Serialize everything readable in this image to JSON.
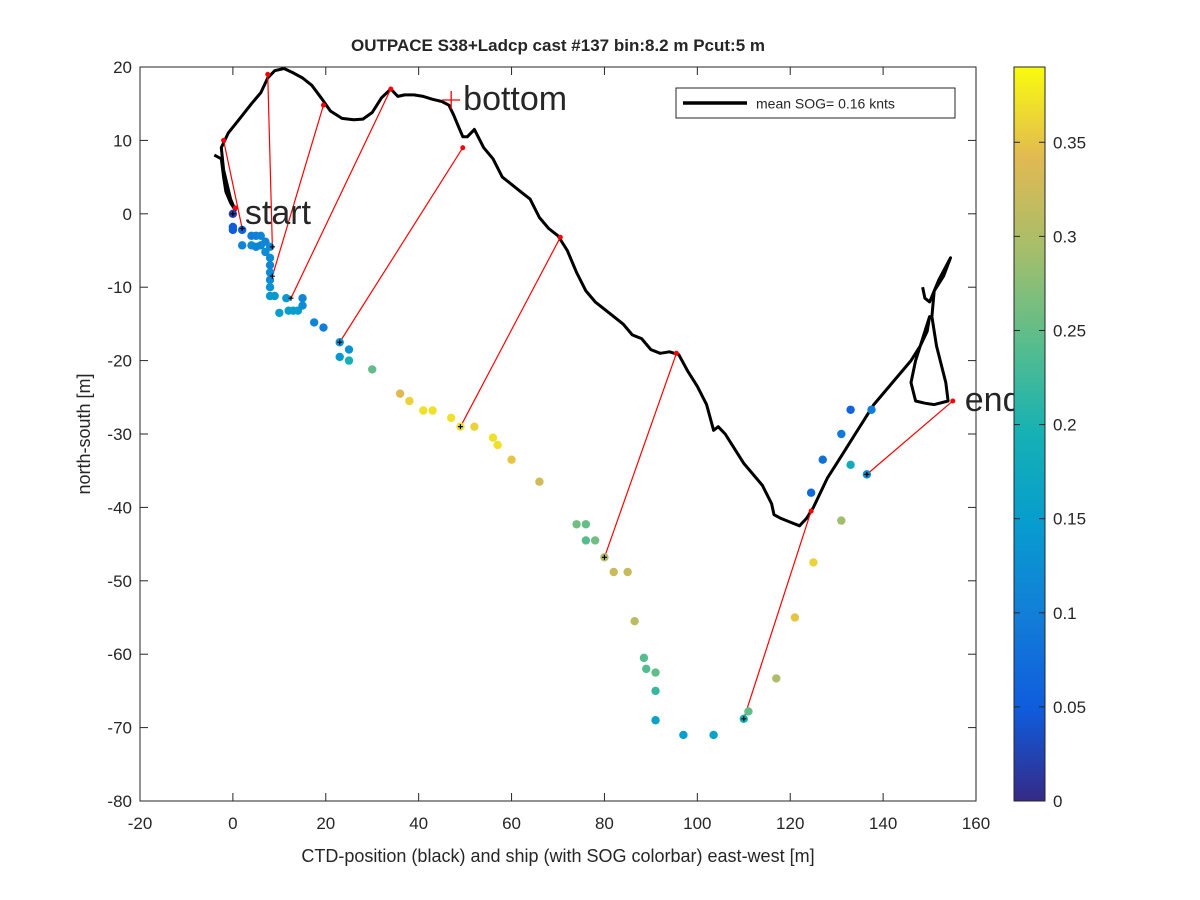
{
  "chart_data": {
    "type": "scatter",
    "title": "OUTPACE S38+Ladcp cast #137 bin:8.2 m  Pcut:5 m",
    "xlabel": "CTD-position (black) and ship (with SOG colorbar) east-west [m]",
    "ylabel": "north-south [m]",
    "xlim": [
      -20,
      160
    ],
    "ylim": [
      -80,
      20
    ],
    "xticks": [
      "-20",
      "0",
      "20",
      "40",
      "60",
      "80",
      "100",
      "120",
      "140",
      "160"
    ],
    "yticks": [
      "-80",
      "-70",
      "-60",
      "-50",
      "-40",
      "-30",
      "-20",
      "-10",
      "0",
      "10",
      "20"
    ],
    "grid": false,
    "legend": {
      "position": "top-right",
      "entries": [
        "mean SOG=  0.16 knts"
      ]
    },
    "annotations": [
      {
        "text": "start",
        "x": 0,
        "y": 0
      },
      {
        "text": "bottom",
        "x": 47,
        "y": 15.5
      },
      {
        "text": "end",
        "x": 155,
        "y": -25.5
      }
    ],
    "colorbar": {
      "colormap": "parula",
      "range": [
        0,
        0.39
      ],
      "ticks": [
        "0",
        "0.05",
        "0.1",
        "0.15",
        "0.2",
        "0.25",
        "0.3",
        "0.35"
      ]
    },
    "ctd_track": [
      [
        -4,
        8
      ],
      [
        -2.5,
        7.5
      ],
      [
        -2,
        5
      ],
      [
        -1.5,
        3
      ],
      [
        -0.5,
        1.5
      ],
      [
        0.5,
        0.5
      ],
      [
        -0.5,
        2
      ],
      [
        -2,
        6
      ],
      [
        -2.5,
        9
      ],
      [
        -1,
        11
      ],
      [
        1.5,
        13
      ],
      [
        4,
        15
      ],
      [
        6,
        16.5
      ],
      [
        7.5,
        18.5
      ],
      [
        9,
        19.5
      ],
      [
        11,
        19.8
      ],
      [
        13,
        19.2
      ],
      [
        15,
        18.5
      ],
      [
        17,
        17.5
      ],
      [
        19,
        15.8
      ],
      [
        21,
        14
      ],
      [
        23.5,
        13
      ],
      [
        26,
        12.8
      ],
      [
        28,
        12.9
      ],
      [
        30,
        13.8
      ],
      [
        32,
        15.8
      ],
      [
        34,
        17
      ],
      [
        35.5,
        16
      ],
      [
        37,
        16.2
      ],
      [
        39,
        16.2
      ],
      [
        41,
        16
      ],
      [
        43,
        15.6
      ],
      [
        45,
        15.3
      ],
      [
        46.5,
        14.8
      ],
      [
        47.5,
        13.5
      ],
      [
        48.5,
        12
      ],
      [
        49.5,
        10.5
      ],
      [
        50.5,
        10.5
      ],
      [
        52,
        11.5
      ],
      [
        54,
        9
      ],
      [
        56,
        7.5
      ],
      [
        58,
        5
      ],
      [
        60,
        4
      ],
      [
        62,
        3
      ],
      [
        64,
        2
      ],
      [
        66,
        -0.5
      ],
      [
        68,
        -2
      ],
      [
        70,
        -3
      ],
      [
        72,
        -5
      ],
      [
        74,
        -8
      ],
      [
        76,
        -10.5
      ],
      [
        78,
        -12
      ],
      [
        80,
        -13
      ],
      [
        82,
        -14
      ],
      [
        84,
        -15
      ],
      [
        86,
        -16.5
      ],
      [
        88,
        -17
      ],
      [
        90,
        -18.5
      ],
      [
        92,
        -19
      ],
      [
        94,
        -18.8
      ],
      [
        96,
        -19.2
      ],
      [
        98,
        -21.5
      ],
      [
        100,
        -23.5
      ],
      [
        102,
        -26
      ],
      [
        103.5,
        -29.5
      ],
      [
        104.5,
        -29
      ],
      [
        106,
        -30
      ],
      [
        108,
        -32
      ],
      [
        110,
        -34
      ],
      [
        112,
        -35.5
      ],
      [
        114,
        -37
      ],
      [
        116,
        -39.5
      ],
      [
        116.5,
        -41
      ],
      [
        118,
        -41.5
      ],
      [
        120,
        -42
      ],
      [
        122,
        -42.5
      ],
      [
        123.5,
        -41.5
      ],
      [
        125,
        -40
      ],
      [
        126.5,
        -38
      ],
      [
        128,
        -36
      ],
      [
        130,
        -34
      ],
      [
        132,
        -32
      ],
      [
        134,
        -30
      ],
      [
        136,
        -28
      ],
      [
        138,
        -26
      ],
      [
        140,
        -24.5
      ],
      [
        142,
        -23
      ],
      [
        144,
        -21.5
      ],
      [
        146,
        -20
      ],
      [
        148,
        -18
      ],
      [
        149.5,
        -16
      ],
      [
        150,
        -14
      ],
      [
        148.5,
        -17
      ],
      [
        147,
        -20
      ],
      [
        146,
        -23
      ],
      [
        147,
        -25.5
      ],
      [
        149,
        -25.8
      ],
      [
        151,
        -26
      ],
      [
        154,
        -25.5
      ],
      [
        153.5,
        -23
      ],
      [
        151.5,
        -18
      ],
      [
        150.5,
        -14
      ],
      [
        151,
        -10.5
      ],
      [
        153,
        -8.5
      ],
      [
        154.5,
        -6
      ],
      [
        152,
        -9
      ],
      [
        150,
        -12
      ],
      [
        149,
        -11.5
      ],
      [
        148.5,
        -10
      ]
    ],
    "ship_points": [
      [
        0,
        0,
        0.02
      ],
      [
        0,
        -1.8,
        0.05
      ],
      [
        0,
        -2.2,
        0.05
      ],
      [
        2,
        -2.2,
        0.06
      ],
      [
        2,
        -4.3,
        0.11
      ],
      [
        4,
        -4.3,
        0.12
      ],
      [
        4,
        -3,
        0.1
      ],
      [
        5,
        -3,
        0.1
      ],
      [
        6,
        -3,
        0.11
      ],
      [
        5,
        -4.5,
        0.11
      ],
      [
        6,
        -4.3,
        0.11
      ],
      [
        7,
        -3.8,
        0.11
      ],
      [
        7,
        -5.2,
        0.12
      ],
      [
        8,
        -4.5,
        0.12
      ],
      [
        8,
        -6,
        0.12
      ],
      [
        8,
        -7,
        0.11
      ],
      [
        8,
        -8,
        0.12
      ],
      [
        8,
        -9,
        0.12
      ],
      [
        8,
        -10,
        0.13
      ],
      [
        8,
        -11.2,
        0.14
      ],
      [
        9,
        -11.2,
        0.14
      ],
      [
        10,
        -13.5,
        0.15
      ],
      [
        11.5,
        -11.5,
        0.14
      ],
      [
        12,
        -13.2,
        0.15
      ],
      [
        13,
        -13.2,
        0.15
      ],
      [
        14,
        -13.2,
        0.15
      ],
      [
        15,
        -11.5,
        0.11
      ],
      [
        15,
        -12.5,
        0.12
      ],
      [
        17.5,
        -14.8,
        0.11
      ],
      [
        19.5,
        -15.5,
        0.1
      ],
      [
        23,
        -17.5,
        0.13
      ],
      [
        23,
        -19.5,
        0.14
      ],
      [
        25,
        -18.5,
        0.13
      ],
      [
        25,
        -20,
        0.19
      ],
      [
        30,
        -21.2,
        0.25
      ],
      [
        36,
        -24.5,
        0.34
      ],
      [
        38,
        -25.5,
        0.36
      ],
      [
        41,
        -26.8,
        0.37
      ],
      [
        43,
        -26.8,
        0.37
      ],
      [
        47,
        -27.8,
        0.37
      ],
      [
        49,
        -29,
        0.37
      ],
      [
        52,
        -29,
        0.36
      ],
      [
        56,
        -30.5,
        0.37
      ],
      [
        57,
        -31.5,
        0.37
      ],
      [
        60,
        -33.5,
        0.35
      ],
      [
        66,
        -36.5,
        0.33
      ],
      [
        74,
        -42.3,
        0.26
      ],
      [
        76,
        -42.3,
        0.25
      ],
      [
        76,
        -44.5,
        0.24
      ],
      [
        78,
        -44.5,
        0.26
      ],
      [
        80,
        -46.8,
        0.3
      ],
      [
        82,
        -48.8,
        0.32
      ],
      [
        85,
        -48.8,
        0.32
      ],
      [
        86.5,
        -55.5,
        0.31
      ],
      [
        88.5,
        -60.5,
        0.24
      ],
      [
        89,
        -62,
        0.24
      ],
      [
        91,
        -62.5,
        0.25
      ],
      [
        91,
        -65,
        0.22
      ],
      [
        91,
        -69,
        0.16
      ],
      [
        97,
        -71,
        0.15
      ],
      [
        103.5,
        -71,
        0.16
      ],
      [
        110,
        -68.8,
        0.19
      ],
      [
        111,
        -67.8,
        0.25
      ],
      [
        117,
        -63.3,
        0.3
      ],
      [
        121,
        -55,
        0.35
      ],
      [
        125,
        -47.5,
        0.36
      ],
      [
        131,
        -41.8,
        0.29
      ],
      [
        124.5,
        -38,
        0.07
      ],
      [
        127,
        -33.5,
        0.08
      ],
      [
        131,
        -30,
        0.09
      ],
      [
        133,
        -34.2,
        0.18
      ],
      [
        133,
        -26.7,
        0.06
      ],
      [
        137.5,
        -26.7,
        0.1
      ],
      [
        136.5,
        -35.5,
        0.12
      ]
    ],
    "connectors": [
      [
        [
          0,
          0
        ],
        [
          0.5,
          0.8
        ]
      ],
      [
        [
          2,
          -2
        ],
        [
          -2,
          10
        ]
      ],
      [
        [
          8.5,
          -4.5
        ],
        [
          7.5,
          19
        ]
      ],
      [
        [
          8.5,
          -8.5
        ],
        [
          19.5,
          14.8
        ]
      ],
      [
        [
          12.5,
          -11.5
        ],
        [
          34,
          17
        ]
      ],
      [
        [
          23,
          -17.5
        ],
        [
          49.5,
          9
        ]
      ],
      [
        [
          49,
          -29
        ],
        [
          70.5,
          -3.2
        ]
      ],
      [
        [
          80,
          -46.8
        ],
        [
          95.5,
          -19
        ]
      ],
      [
        [
          110,
          -68.8
        ],
        [
          124.5,
          -40.5
        ]
      ],
      [
        [
          136.5,
          -35.5
        ],
        [
          155,
          -25.5
        ]
      ]
    ]
  }
}
